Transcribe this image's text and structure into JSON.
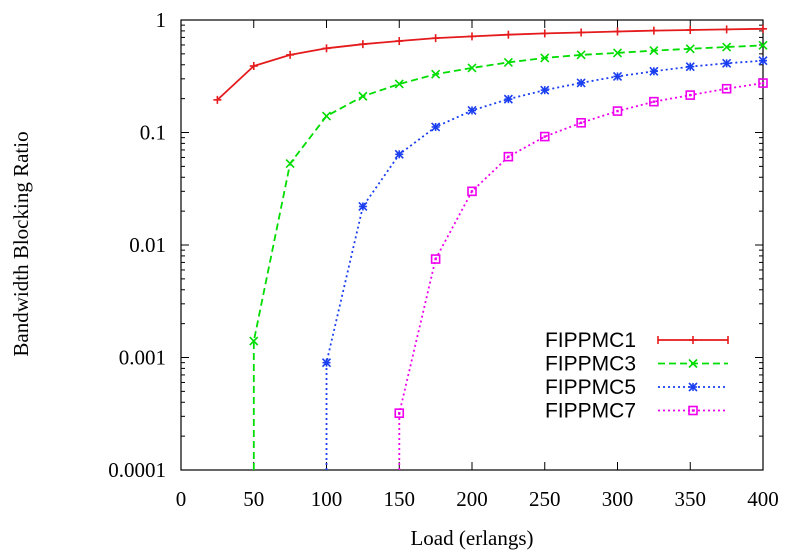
{
  "chart_data": {
    "type": "line",
    "xlabel": "Load (erlangs)",
    "ylabel": "Bandwidth Blocking Ratio",
    "xlim": [
      0,
      400
    ],
    "ylim": [
      0.0001,
      1
    ],
    "yscale": "log",
    "x_ticks": [
      0,
      50,
      100,
      150,
      200,
      250,
      300,
      350,
      400
    ],
    "x_tick_labels": [
      "0",
      "50",
      "100",
      "150",
      "200",
      "250",
      "300",
      "350",
      "400"
    ],
    "y_ticks": [
      0.0001,
      0.001,
      0.01,
      0.1,
      1
    ],
    "y_tick_labels": [
      "0.0001",
      "0.001",
      "0.01",
      "0.1",
      "1"
    ],
    "grid": false,
    "legend_position": "bottom-right",
    "series": [
      {
        "name": "FIPPMC1",
        "color": "#e41a1c",
        "marker": "plus",
        "dash": "solid",
        "x": [
          25,
          50,
          75,
          100,
          125,
          150,
          175,
          200,
          225,
          250,
          275,
          300,
          325,
          350,
          375,
          400
        ],
        "y": [
          0.195,
          0.39,
          0.49,
          0.56,
          0.61,
          0.65,
          0.69,
          0.715,
          0.74,
          0.76,
          0.775,
          0.79,
          0.805,
          0.815,
          0.825,
          0.835
        ]
      },
      {
        "name": "FIPPMC3",
        "color": "#00dd00",
        "marker": "x",
        "dash": "dashed",
        "x": [
          50,
          50,
          75,
          100,
          125,
          150,
          175,
          200,
          225,
          250,
          275,
          300,
          325,
          350,
          375,
          400
        ],
        "y": [
          0.0001,
          0.0014,
          0.053,
          0.14,
          0.21,
          0.27,
          0.33,
          0.375,
          0.42,
          0.46,
          0.49,
          0.51,
          0.535,
          0.555,
          0.575,
          0.595
        ]
      },
      {
        "name": "FIPPMC5",
        "color": "#1a3ef0",
        "marker": "asterisk",
        "dash": "dotted",
        "x": [
          100,
          100,
          125,
          150,
          175,
          200,
          225,
          250,
          275,
          300,
          325,
          350,
          375,
          400
        ],
        "y": [
          0.0001,
          0.0009,
          0.022,
          0.064,
          0.112,
          0.157,
          0.198,
          0.238,
          0.276,
          0.315,
          0.35,
          0.385,
          0.412,
          0.435
        ]
      },
      {
        "name": "FIPPMC7",
        "color": "#ee00ee",
        "marker": "square",
        "dash": "dotted",
        "x": [
          150,
          150,
          175,
          200,
          225,
          250,
          275,
          300,
          325,
          350,
          375,
          400
        ],
        "y": [
          0.0001,
          0.00032,
          0.0075,
          0.03,
          0.061,
          0.092,
          0.122,
          0.155,
          0.188,
          0.215,
          0.245,
          0.275
        ]
      }
    ]
  }
}
